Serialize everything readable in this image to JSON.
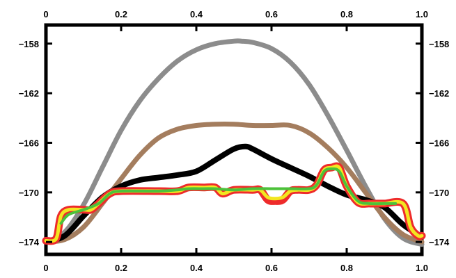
{
  "chart_data": {
    "type": "line",
    "title": "",
    "xlabel": "",
    "ylabel": "",
    "xlim": [
      0,
      1.0
    ],
    "ylim": [
      -175,
      -156.5
    ],
    "grid": false,
    "x_ticks": [
      0,
      0.2,
      0.4,
      0.6,
      0.8,
      1.0
    ],
    "x_tick_labels": [
      "0",
      "0.2",
      "0.4",
      "0.6",
      "0.8",
      "1.0"
    ],
    "y_ticks": [
      -158,
      -162,
      -166,
      -170,
      -174
    ],
    "y_tick_labels": [
      "−158",
      "−162",
      "−166",
      "−170",
      "−174"
    ],
    "series": [
      {
        "color": "#8c8c8c",
        "stroke_width": 7,
        "x": [
          0,
          0.05,
          0.1,
          0.15,
          0.2,
          0.25,
          0.3,
          0.35,
          0.4,
          0.45,
          0.5,
          0.52,
          0.55,
          0.6,
          0.65,
          0.7,
          0.75,
          0.8,
          0.85,
          0.9,
          0.95,
          1.0
        ],
        "values": [
          -174,
          -173.2,
          -171.0,
          -168.0,
          -165.0,
          -162.6,
          -160.8,
          -159.4,
          -158.5,
          -158.0,
          -157.8,
          -157.8,
          -157.9,
          -158.4,
          -159.5,
          -161.3,
          -163.8,
          -166.6,
          -169.5,
          -172.1,
          -173.7,
          -174.2
        ]
      },
      {
        "color": "#a47d5e",
        "stroke_width": 7,
        "x": [
          0,
          0.05,
          0.1,
          0.15,
          0.2,
          0.25,
          0.3,
          0.35,
          0.4,
          0.45,
          0.5,
          0.55,
          0.6,
          0.65,
          0.7,
          0.75,
          0.8,
          0.85,
          0.9,
          0.95,
          1.0
        ],
        "values": [
          -174,
          -173.8,
          -172.8,
          -170.9,
          -168.9,
          -167.0,
          -165.6,
          -164.9,
          -164.6,
          -164.5,
          -164.5,
          -164.6,
          -164.6,
          -164.6,
          -165.2,
          -166.4,
          -168.0,
          -170.0,
          -172.0,
          -173.4,
          -174.0
        ]
      },
      {
        "color": "#000000",
        "stroke_width": 8,
        "x": [
          0,
          0.05,
          0.1,
          0.15,
          0.2,
          0.25,
          0.3,
          0.35,
          0.4,
          0.45,
          0.5,
          0.53,
          0.55,
          0.6,
          0.65,
          0.7,
          0.75,
          0.8,
          0.85,
          0.9,
          0.95,
          1.0
        ],
        "values": [
          -174,
          -173.5,
          -171.9,
          -170.4,
          -169.5,
          -169.0,
          -168.8,
          -168.6,
          -168.3,
          -167.4,
          -166.5,
          -166.3,
          -166.5,
          -167.3,
          -168.0,
          -168.7,
          -169.5,
          -170.2,
          -170.6,
          -171.2,
          -172.6,
          -173.6
        ]
      },
      {
        "color": "#ee2b2b",
        "stroke_width": 11,
        "x": [
          0,
          0.02,
          0.03,
          0.04,
          0.06,
          0.1,
          0.12,
          0.14,
          0.17,
          0.2,
          0.3,
          0.35,
          0.38,
          0.42,
          0.45,
          0.47,
          0.5,
          0.55,
          0.57,
          0.59,
          0.61,
          0.63,
          0.65,
          0.67,
          0.7,
          0.72,
          0.74,
          0.76,
          0.78,
          0.8,
          0.83,
          0.86,
          0.88,
          0.9,
          0.95,
          0.97,
          0.99,
          1.0
        ],
        "values": [
          -173.9,
          -173.9,
          -173.5,
          -171.9,
          -171.4,
          -171.4,
          -171.4,
          -170.9,
          -170.1,
          -169.9,
          -169.9,
          -169.9,
          -169.6,
          -169.6,
          -169.6,
          -170.1,
          -169.8,
          -169.8,
          -169.8,
          -170.6,
          -170.7,
          -170.6,
          -169.9,
          -169.8,
          -169.8,
          -169.4,
          -168.2,
          -168.0,
          -168.0,
          -169.5,
          -170.8,
          -170.9,
          -170.9,
          -170.9,
          -170.9,
          -172.8,
          -173.5,
          -173.5
        ]
      },
      {
        "color": "#f2e620",
        "stroke_width": 5,
        "x": [
          0,
          0.02,
          0.03,
          0.04,
          0.06,
          0.1,
          0.12,
          0.14,
          0.17,
          0.2,
          0.3,
          0.35,
          0.38,
          0.42,
          0.45,
          0.47,
          0.5,
          0.55,
          0.57,
          0.59,
          0.61,
          0.63,
          0.65,
          0.67,
          0.7,
          0.72,
          0.74,
          0.76,
          0.78,
          0.8,
          0.83,
          0.86,
          0.88,
          0.9,
          0.95,
          0.97,
          0.99,
          1.0
        ],
        "values": [
          -173.9,
          -173.9,
          -173.5,
          -171.9,
          -171.4,
          -171.4,
          -171.4,
          -170.9,
          -170.1,
          -169.9,
          -169.9,
          -169.9,
          -169.6,
          -169.6,
          -169.6,
          -170.1,
          -169.8,
          -169.8,
          -169.8,
          -170.4,
          -170.5,
          -170.4,
          -169.9,
          -169.8,
          -169.8,
          -169.4,
          -168.2,
          -168.0,
          -168.0,
          -169.5,
          -170.8,
          -170.9,
          -170.9,
          -170.9,
          -170.9,
          -172.8,
          -173.5,
          -173.5
        ]
      },
      {
        "color": "#4cc23a",
        "stroke_width": 4,
        "x": [
          0.04,
          0.06,
          0.1,
          0.14,
          0.17,
          0.2,
          0.3,
          0.35,
          0.38,
          0.42,
          0.45,
          0.5,
          0.55,
          0.6,
          0.65,
          0.7,
          0.72,
          0.74,
          0.76,
          0.78,
          0.8,
          0.83,
          0.86,
          0.9,
          0.93
        ],
        "values": [
          -172.5,
          -171.8,
          -171.4,
          -170.9,
          -170.1,
          -169.9,
          -169.9,
          -169.8,
          -169.7,
          -169.7,
          -169.7,
          -169.8,
          -169.7,
          -169.7,
          -169.7,
          -169.7,
          -169.4,
          -168.3,
          -168.1,
          -168.3,
          -169.5,
          -170.7,
          -170.9,
          -170.9,
          -170.9
        ]
      }
    ]
  }
}
